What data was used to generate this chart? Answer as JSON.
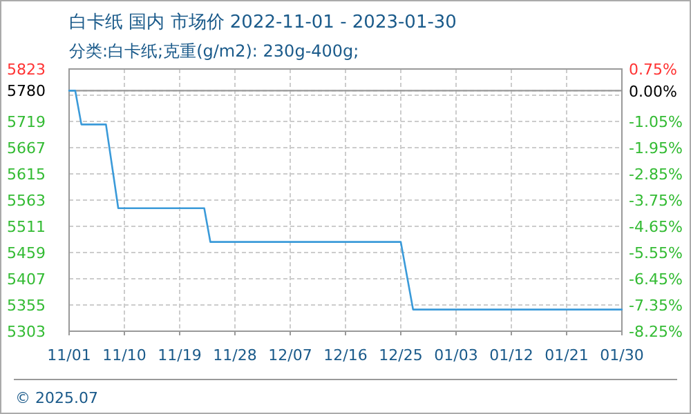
{
  "chart_data": {
    "type": "line",
    "title": "白卡纸 国内 市场价 2022-11-01 - 2023-01-30",
    "subtitle": "分类:白卡纸;克重(g/m2): 230g-400g;",
    "x": [
      "2022-11-01",
      "2022-11-02",
      "2022-11-03",
      "2022-11-07",
      "2022-11-09",
      "2022-11-23",
      "2022-11-24",
      "2022-12-25",
      "2022-12-27",
      "2023-01-30"
    ],
    "series": [
      {
        "color": "#3a9ad9",
        "values": [
          5780,
          5780,
          5713,
          5713,
          5547,
          5547,
          5480,
          5480,
          5346,
          5346
        ]
      }
    ],
    "xlim": [
      "2022-11-01",
      "2023-01-30"
    ],
    "xticks": [
      {
        "value": "2022-11-01",
        "label": "11/01"
      },
      {
        "value": "2022-11-10",
        "label": "11/10"
      },
      {
        "value": "2022-11-19",
        "label": "11/19"
      },
      {
        "value": "2022-11-28",
        "label": "11/28"
      },
      {
        "value": "2022-12-07",
        "label": "12/07"
      },
      {
        "value": "2022-12-16",
        "label": "12/16"
      },
      {
        "value": "2022-12-25",
        "label": "12/25"
      },
      {
        "value": "2023-01-03",
        "label": "01/03"
      },
      {
        "value": "2023-01-12",
        "label": "01/12"
      },
      {
        "value": "2023-01-21",
        "label": "01/21"
      },
      {
        "value": "2023-01-30",
        "label": "01/30"
      }
    ],
    "ylim": [
      5303,
      5823
    ],
    "yticks": [
      5303,
      5355,
      5407,
      5459,
      5511,
      5563,
      5615,
      5667,
      5719,
      {
        "value": 5771,
        "label": null
      },
      5780,
      5823
    ],
    "y2lim": [
      -8.25,
      0.75
    ],
    "y2ticks": [
      {
        "value": -8.25,
        "label": "-8.25%"
      },
      {
        "value": -7.35,
        "label": "-7.35%"
      },
      {
        "value": -6.45,
        "label": "-6.45%"
      },
      {
        "value": -5.55,
        "label": "-5.55%"
      },
      {
        "value": -4.65,
        "label": "-4.65%"
      },
      {
        "value": -3.75,
        "label": "-3.75%"
      },
      {
        "value": -2.85,
        "label": "-2.85%"
      },
      {
        "value": -1.95,
        "label": "-1.95%"
      },
      {
        "value": -1.05,
        "label": "-1.05%"
      },
      {
        "value": 0,
        "label": "0.00%"
      },
      {
        "value": 0.75,
        "label": "0.75%"
      }
    ],
    "ref_lines": [
      {
        "axis": "y",
        "value": 5780,
        "color": "#999999"
      }
    ],
    "grid": true,
    "annotations": [
      "© 2025.07"
    ]
  }
}
